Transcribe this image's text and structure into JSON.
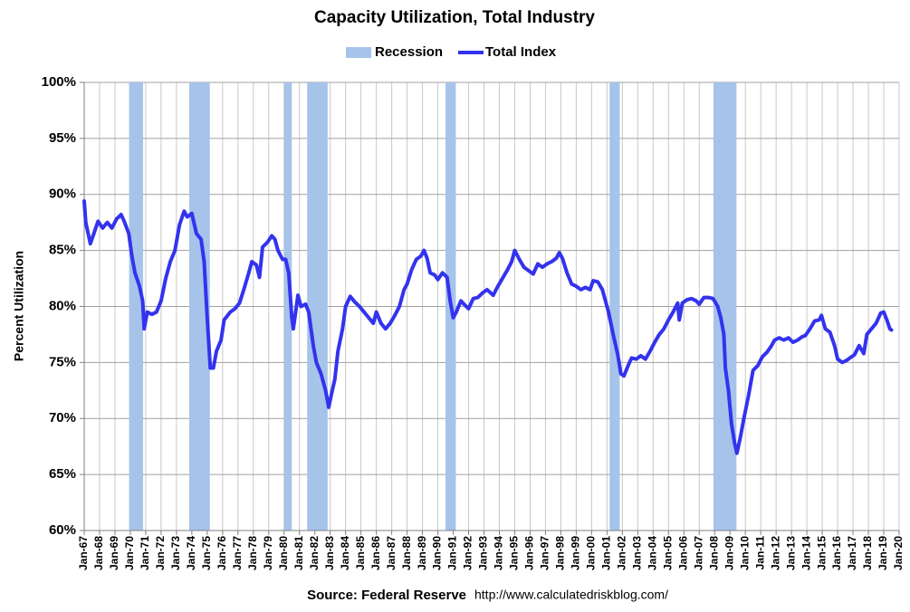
{
  "chart_data": {
    "type": "line",
    "title": "Capacity Utilization, Total Industry",
    "y_label": "Percent Utilization",
    "source": "Source: Federal Reserve",
    "source_url": "http://www.calculatedriskblog.com/",
    "xlim": [
      1967,
      2020
    ],
    "ylim": [
      60,
      100
    ],
    "grid": true,
    "legend": "top",
    "yticks": [
      {
        "value": 60,
        "label": "60%"
      },
      {
        "value": 65,
        "label": "65%"
      },
      {
        "value": 70,
        "label": "70%"
      },
      {
        "value": 75,
        "label": "75%"
      },
      {
        "value": 80,
        "label": "80%"
      },
      {
        "value": 85,
        "label": "85%"
      },
      {
        "value": 90,
        "label": "90%"
      },
      {
        "value": 95,
        "label": "95%"
      },
      {
        "value": 100,
        "label": "100%"
      }
    ],
    "xticks": [
      {
        "value": 1967,
        "label": "Jan-67"
      },
      {
        "value": 1968,
        "label": "Jan-68"
      },
      {
        "value": 1969,
        "label": "Jan-69"
      },
      {
        "value": 1970,
        "label": "Jan-70"
      },
      {
        "value": 1971,
        "label": "Jan-71"
      },
      {
        "value": 1972,
        "label": "Jan-72"
      },
      {
        "value": 1973,
        "label": "Jan-73"
      },
      {
        "value": 1974,
        "label": "Jan-74"
      },
      {
        "value": 1975,
        "label": "Jan-75"
      },
      {
        "value": 1976,
        "label": "Jan-76"
      },
      {
        "value": 1977,
        "label": "Jan-77"
      },
      {
        "value": 1978,
        "label": "Jan-78"
      },
      {
        "value": 1979,
        "label": "Jan-79"
      },
      {
        "value": 1980,
        "label": "Jan-80"
      },
      {
        "value": 1981,
        "label": "Jan-81"
      },
      {
        "value": 1982,
        "label": "Jan-82"
      },
      {
        "value": 1983,
        "label": "Jan-83"
      },
      {
        "value": 1984,
        "label": "Jan-84"
      },
      {
        "value": 1985,
        "label": "Jan-85"
      },
      {
        "value": 1986,
        "label": "Jan-86"
      },
      {
        "value": 1987,
        "label": "Jan-87"
      },
      {
        "value": 1988,
        "label": "Jan-88"
      },
      {
        "value": 1989,
        "label": "Jan-89"
      },
      {
        "value": 1990,
        "label": "Jan-90"
      },
      {
        "value": 1991,
        "label": "Jan-91"
      },
      {
        "value": 1992,
        "label": "Jan-92"
      },
      {
        "value": 1993,
        "label": "Jan-93"
      },
      {
        "value": 1994,
        "label": "Jan-94"
      },
      {
        "value": 1995,
        "label": "Jan-95"
      },
      {
        "value": 1996,
        "label": "Jan-96"
      },
      {
        "value": 1997,
        "label": "Jan-97"
      },
      {
        "value": 1998,
        "label": "Jan-98"
      },
      {
        "value": 1999,
        "label": "Jan-99"
      },
      {
        "value": 2000,
        "label": "Jan-00"
      },
      {
        "value": 2001,
        "label": "Jan-01"
      },
      {
        "value": 2002,
        "label": "Jan-02"
      },
      {
        "value": 2003,
        "label": "Jan-03"
      },
      {
        "value": 2004,
        "label": "Jan-04"
      },
      {
        "value": 2005,
        "label": "Jan-05"
      },
      {
        "value": 2006,
        "label": "Jan-06"
      },
      {
        "value": 2007,
        "label": "Jan-07"
      },
      {
        "value": 2008,
        "label": "Jan-08"
      },
      {
        "value": 2009,
        "label": "Jan-09"
      },
      {
        "value": 2010,
        "label": "Jan-10"
      },
      {
        "value": 2011,
        "label": "Jan-11"
      },
      {
        "value": 2012,
        "label": "Jan-12"
      },
      {
        "value": 2013,
        "label": "Jan-13"
      },
      {
        "value": 2014,
        "label": "Jan-14"
      },
      {
        "value": 2015,
        "label": "Jan-15"
      },
      {
        "value": 2016,
        "label": "Jan-16"
      },
      {
        "value": 2017,
        "label": "Jan-17"
      },
      {
        "value": 2018,
        "label": "Jan-18"
      },
      {
        "value": 2019,
        "label": "Jan-19"
      },
      {
        "value": 2020,
        "label": "Jan-20"
      }
    ],
    "bands": {
      "name": "Recession",
      "color": "#a6c3ea",
      "ranges": [
        [
          1969.92,
          1970.83
        ],
        [
          1973.83,
          1975.17
        ],
        [
          1980.0,
          1980.5
        ],
        [
          1981.5,
          1982.83
        ],
        [
          1990.5,
          1991.17
        ],
        [
          2001.17,
          2001.83
        ],
        [
          2007.92,
          2009.42
        ]
      ]
    },
    "x": [
      1967.0,
      1967.1,
      1967.4,
      1967.6,
      1967.9,
      1968.2,
      1968.5,
      1968.8,
      1969.1,
      1969.4,
      1969.6,
      1969.9,
      1970.1,
      1970.3,
      1970.6,
      1970.8,
      1970.9,
      1971.1,
      1971.4,
      1971.7,
      1972.0,
      1972.3,
      1972.6,
      1972.9,
      1973.2,
      1973.5,
      1973.7,
      1974.0,
      1974.3,
      1974.6,
      1974.8,
      1975.0,
      1975.2,
      1975.4,
      1975.6,
      1975.9,
      1976.1,
      1976.5,
      1976.8,
      1977.1,
      1977.4,
      1977.7,
      1977.9,
      1978.2,
      1978.4,
      1978.6,
      1978.9,
      1979.2,
      1979.4,
      1979.6,
      1979.9,
      1980.1,
      1980.3,
      1980.5,
      1980.6,
      1980.9,
      1981.1,
      1981.4,
      1981.6,
      1981.9,
      1982.1,
      1982.4,
      1982.7,
      1982.9,
      1983.1,
      1983.3,
      1983.5,
      1983.8,
      1984.0,
      1984.3,
      1984.6,
      1984.9,
      1985.2,
      1985.5,
      1985.8,
      1986.0,
      1986.3,
      1986.6,
      1986.9,
      1987.2,
      1987.5,
      1987.8,
      1988.0,
      1988.3,
      1988.6,
      1988.9,
      1989.1,
      1989.3,
      1989.5,
      1989.8,
      1990.0,
      1990.3,
      1990.6,
      1990.8,
      1991.0,
      1991.2,
      1991.5,
      1991.7,
      1992.0,
      1992.3,
      1992.6,
      1992.9,
      1993.2,
      1993.6,
      1993.9,
      1994.2,
      1994.5,
      1994.8,
      1995.0,
      1995.3,
      1995.6,
      1995.9,
      1996.2,
      1996.5,
      1996.8,
      1997.1,
      1997.4,
      1997.7,
      1997.9,
      1998.1,
      1998.4,
      1998.7,
      1999.0,
      1999.3,
      1999.6,
      1999.9,
      2000.1,
      2000.4,
      2000.7,
      2000.9,
      2001.1,
      2001.4,
      2001.7,
      2001.9,
      2002.1,
      2002.4,
      2002.6,
      2002.9,
      2003.2,
      2003.5,
      2003.8,
      2004.1,
      2004.4,
      2004.7,
      2005.0,
      2005.3,
      2005.6,
      2005.7,
      2005.9,
      2006.2,
      2006.5,
      2006.8,
      2007.0,
      2007.3,
      2007.6,
      2007.9,
      2008.2,
      2008.4,
      2008.6,
      2008.7,
      2008.9,
      2009.1,
      2009.3,
      2009.45,
      2009.7,
      2009.9,
      2010.2,
      2010.5,
      2010.8,
      2011.1,
      2011.4,
      2011.7,
      2011.9,
      2012.2,
      2012.5,
      2012.8,
      2013.1,
      2013.4,
      2013.7,
      2013.9,
      2014.2,
      2014.5,
      2014.8,
      2014.95,
      2015.2,
      2015.5,
      2015.8,
      2016.0,
      2016.3,
      2016.6,
      2016.9,
      2017.1,
      2017.4,
      2017.7,
      2017.9,
      2018.2,
      2018.5,
      2018.8,
      2019.0,
      2019.2,
      2019.4,
      2019.5
    ],
    "series": [
      {
        "name": "Total Index",
        "color": "#3333ee",
        "values": [
          89.4,
          87.5,
          85.6,
          86.4,
          87.6,
          87.0,
          87.5,
          87.0,
          87.8,
          88.2,
          87.6,
          86.5,
          84.5,
          83.0,
          81.8,
          80.5,
          78.0,
          79.5,
          79.3,
          79.5,
          80.5,
          82.5,
          84.0,
          85.0,
          87.3,
          88.5,
          88.0,
          88.3,
          86.5,
          86.0,
          84.0,
          79.0,
          74.5,
          74.5,
          76.0,
          77.0,
          78.8,
          79.5,
          79.8,
          80.3,
          81.6,
          83.0,
          84.0,
          83.7,
          82.6,
          85.3,
          85.7,
          86.3,
          86.0,
          85.0,
          84.2,
          84.2,
          83.0,
          79.0,
          78.0,
          81.0,
          80.0,
          80.2,
          79.5,
          76.5,
          75.0,
          74.0,
          72.5,
          71.0,
          72.3,
          73.5,
          76.0,
          78.0,
          80.0,
          80.9,
          80.4,
          80.0,
          79.5,
          79.0,
          78.5,
          79.5,
          78.5,
          78.0,
          78.5,
          79.2,
          80.0,
          81.5,
          82.0,
          83.3,
          84.2,
          84.5,
          85.0,
          84.3,
          83.0,
          82.8,
          82.4,
          83.0,
          82.6,
          80.5,
          79.0,
          79.5,
          80.5,
          80.2,
          79.8,
          80.7,
          80.8,
          81.2,
          81.5,
          81.0,
          81.8,
          82.5,
          83.2,
          84.0,
          85.0,
          84.2,
          83.5,
          83.2,
          82.9,
          83.8,
          83.5,
          83.8,
          84.0,
          84.3,
          84.8,
          84.3,
          83.0,
          82.0,
          81.8,
          81.5,
          81.7,
          81.5,
          82.3,
          82.2,
          81.5,
          80.5,
          79.5,
          77.5,
          75.7,
          74.0,
          73.8,
          74.8,
          75.4,
          75.3,
          75.6,
          75.3,
          76.0,
          76.8,
          77.5,
          78.0,
          78.8,
          79.5,
          80.3,
          78.8,
          80.3,
          80.6,
          80.7,
          80.5,
          80.2,
          80.8,
          80.8,
          80.7,
          80.0,
          79.0,
          77.5,
          74.5,
          72.5,
          69.5,
          67.8,
          66.9,
          68.5,
          70.0,
          72.0,
          74.3,
          74.7,
          75.5,
          75.9,
          76.5,
          77.0,
          77.2,
          77.0,
          77.2,
          76.8,
          77.0,
          77.3,
          77.4,
          78.0,
          78.7,
          78.8,
          79.2,
          78.0,
          77.7,
          76.5,
          75.3,
          75.0,
          75.2,
          75.5,
          75.7,
          76.5,
          75.8,
          77.5,
          78.0,
          78.5,
          79.4,
          79.5,
          78.8,
          78.0,
          77.9
        ]
      }
    ]
  }
}
